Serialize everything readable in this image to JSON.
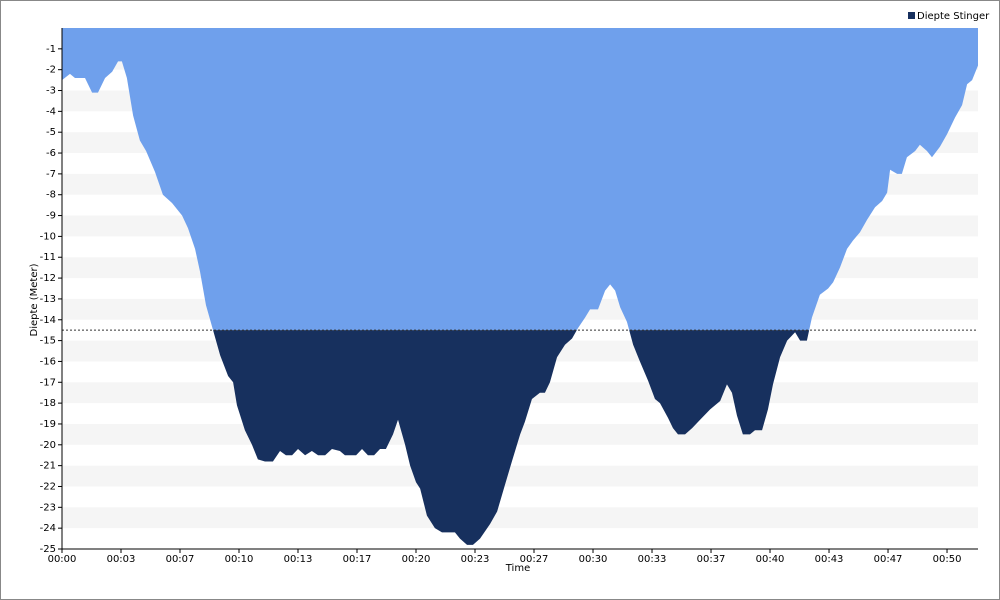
{
  "chart_data": {
    "type": "area",
    "legend_label": "Diepte Stinger",
    "x_label": "Time",
    "y_label": "Diepte (Meter)",
    "xlim": [
      0,
      3105
    ],
    "ylim": [
      -25,
      0
    ],
    "xticks": [
      {
        "value": 0,
        "label": "00:00"
      },
      {
        "value": 200,
        "label": "00:03"
      },
      {
        "value": 400,
        "label": "00:07"
      },
      {
        "value": 600,
        "label": "00:10"
      },
      {
        "value": 800,
        "label": "00:13"
      },
      {
        "value": 1000,
        "label": "00:17"
      },
      {
        "value": 1200,
        "label": "00:20"
      },
      {
        "value": 1400,
        "label": "00:23"
      },
      {
        "value": 1600,
        "label": "00:27"
      },
      {
        "value": 1800,
        "label": "00:30"
      },
      {
        "value": 2000,
        "label": "00:33"
      },
      {
        "value": 2200,
        "label": "00:37"
      },
      {
        "value": 2400,
        "label": "00:40"
      },
      {
        "value": 2600,
        "label": "00:43"
      },
      {
        "value": 2800,
        "label": "00:47"
      },
      {
        "value": 3000,
        "label": "00:50"
      }
    ],
    "yticks": [
      -1,
      -2,
      -3,
      -4,
      -5,
      -6,
      -7,
      -8,
      -9,
      -10,
      -11,
      -12,
      -13,
      -14,
      -15,
      -16,
      -17,
      -18,
      -19,
      -20,
      -21,
      -22,
      -23,
      -24,
      -25
    ],
    "threshold": -14.5,
    "threshold_color": "#17305e",
    "band_color": "#f5f5f5",
    "x": [
      0,
      27,
      44,
      78,
      102,
      122,
      146,
      170,
      190,
      203,
      220,
      241,
      264,
      285,
      315,
      342,
      373,
      407,
      427,
      451,
      468,
      488,
      512,
      536,
      563,
      580,
      593,
      620,
      644,
      664,
      688,
      715,
      739,
      759,
      780,
      800,
      824,
      847,
      868,
      892,
      915,
      942,
      959,
      997,
      1017,
      1037,
      1058,
      1078,
      1098,
      1122,
      1139,
      1163,
      1180,
      1200,
      1214,
      1237,
      1264,
      1288,
      1332,
      1349,
      1373,
      1393,
      1417,
      1451,
      1475,
      1502,
      1525,
      1553,
      1569,
      1593,
      1620,
      1637,
      1654,
      1678,
      1705,
      1729,
      1749,
      1773,
      1790,
      1817,
      1841,
      1858,
      1875,
      1892,
      1915,
      1936,
      1959,
      1986,
      2010,
      2027,
      2054,
      2071,
      2088,
      2112,
      2136,
      2163,
      2197,
      2231,
      2254,
      2271,
      2288,
      2308,
      2332,
      2349,
      2373,
      2393,
      2410,
      2434,
      2458,
      2485,
      2502,
      2525,
      2542,
      2569,
      2597,
      2614,
      2637,
      2661,
      2681,
      2705,
      2729,
      2756,
      2780,
      2797,
      2807,
      2831,
      2847,
      2864,
      2892,
      2908,
      2932,
      2949,
      2976,
      3000,
      3027,
      3051,
      3068,
      3085,
      3105
    ],
    "series": [
      {
        "name": "Diepte Stinger",
        "color": "#6fa0ec",
        "values": [
          -2.5,
          -2.2,
          -2.4,
          -2.4,
          -3.1,
          -3.1,
          -2.4,
          -2.1,
          -1.6,
          -1.6,
          -2.4,
          -4.2,
          -5.4,
          -5.9,
          -6.9,
          -8.0,
          -8.4,
          -9.0,
          -9.6,
          -10.6,
          -11.7,
          -13.3,
          -14.5,
          -15.7,
          -16.7,
          -17.0,
          -18.1,
          -19.3,
          -20.0,
          -20.7,
          -20.8,
          -20.8,
          -20.3,
          -20.5,
          -20.5,
          -20.2,
          -20.5,
          -20.3,
          -20.5,
          -20.5,
          -20.2,
          -20.3,
          -20.5,
          -20.5,
          -20.2,
          -20.5,
          -20.5,
          -20.2,
          -20.2,
          -19.5,
          -18.8,
          -20.0,
          -21.0,
          -21.8,
          -22.1,
          -23.4,
          -24.0,
          -24.2,
          -24.2,
          -24.5,
          -24.8,
          -24.8,
          -24.5,
          -23.8,
          -23.2,
          -21.9,
          -20.8,
          -19.5,
          -18.9,
          -17.8,
          -17.5,
          -17.5,
          -17.0,
          -15.8,
          -15.2,
          -14.9,
          -14.4,
          -13.9,
          -13.5,
          -13.5,
          -12.6,
          -12.3,
          -12.6,
          -13.4,
          -14.1,
          -15.2,
          -16.0,
          -16.9,
          -17.8,
          -18.0,
          -18.7,
          -19.2,
          -19.5,
          -19.5,
          -19.2,
          -18.8,
          -18.3,
          -17.9,
          -17.1,
          -17.5,
          -18.6,
          -19.5,
          -19.5,
          -19.3,
          -19.3,
          -18.3,
          -17.1,
          -15.8,
          -15.0,
          -14.6,
          -15.0,
          -15.0,
          -13.9,
          -12.8,
          -12.5,
          -12.2,
          -11.5,
          -10.6,
          -10.2,
          -9.8,
          -9.2,
          -8.6,
          -8.3,
          -7.9,
          -6.8,
          -7.0,
          -7.0,
          -6.2,
          -5.9,
          -5.6,
          -5.9,
          -6.2,
          -5.7,
          -5.1,
          -4.3,
          -3.7,
          -2.7,
          -2.5,
          -1.8
        ]
      }
    ]
  }
}
